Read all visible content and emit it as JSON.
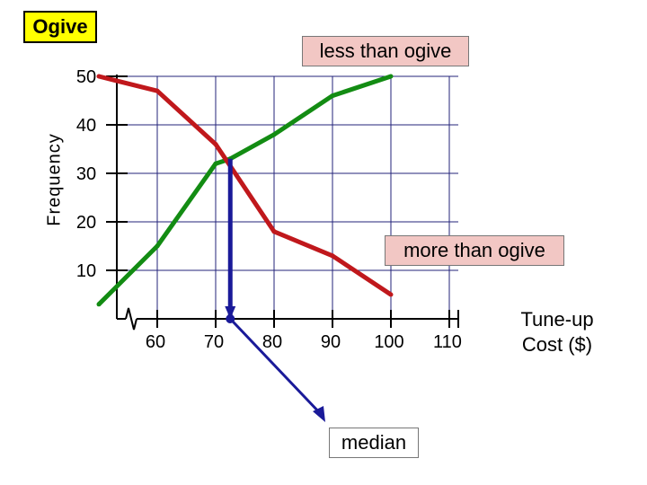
{
  "chart_data": {
    "type": "line",
    "title": "Ogive",
    "xlabel": "Tune-up Cost ($)",
    "xlabel_lines": [
      "Tune-up",
      "Cost ($)"
    ],
    "ylabel": "Frequency",
    "x_ticks": [
      "60",
      "70",
      "80",
      "90",
      "100",
      "110"
    ],
    "y_ticks": [
      "10",
      "20",
      "30",
      "40",
      "50"
    ],
    "xlim": [
      50,
      120
    ],
    "ylim": [
      0,
      50
    ],
    "grid": true,
    "series": [
      {
        "name": "less than ogive",
        "color": "#138c13",
        "x": [
          50,
          60,
          70,
          72.5,
          80,
          90,
          100
        ],
        "y": [
          3,
          15,
          32,
          33,
          38,
          46,
          50
        ]
      },
      {
        "name": "more than ogive",
        "color": "#c0181c",
        "x": [
          50,
          60,
          70,
          80,
          90,
          100
        ],
        "y": [
          50,
          47,
          36,
          18,
          13,
          5
        ]
      }
    ],
    "annotations": [
      {
        "text": "median",
        "x": 72.5,
        "y": 33,
        "color": "#1a1a99"
      }
    ]
  }
}
